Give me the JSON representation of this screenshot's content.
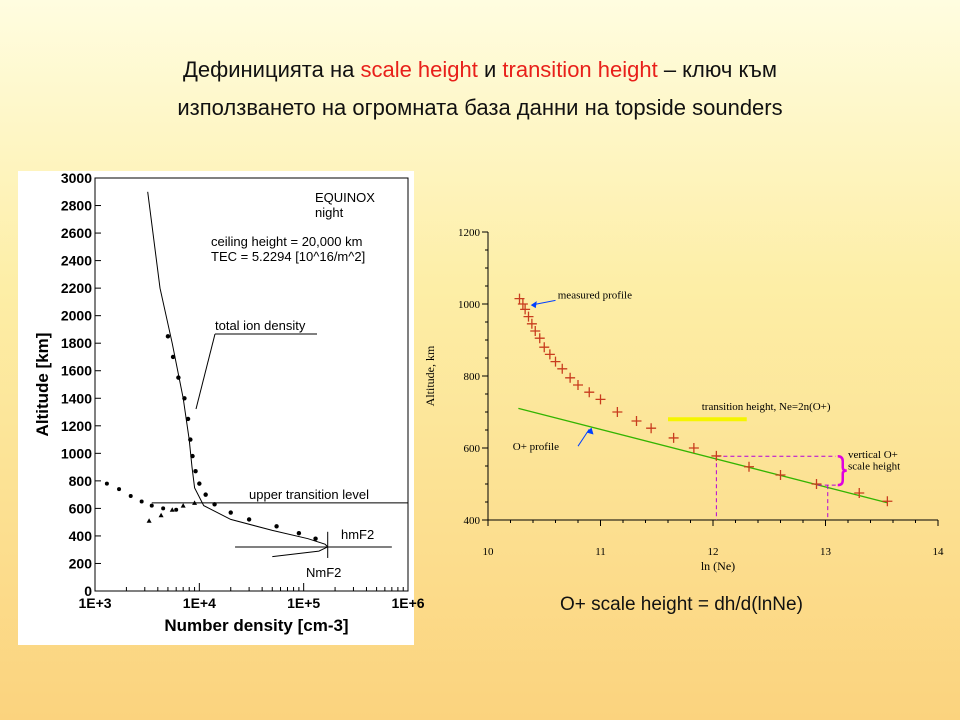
{
  "slide": {
    "title_line1_a": "Дефиницията на ",
    "title_line1_b": "scale height",
    "title_line1_c": " и ",
    "title_line1_d": "transition height",
    "title_line1_e": " – ключ към",
    "title_line2": "използването на огромната база данни на topside sounders",
    "formula": "O+ scale height = dh/d(lnNe)",
    "accent_color": "#e8201a"
  },
  "chart_data": [
    {
      "type": "scatter",
      "xlabel": "Number density [cm-3]",
      "ylabel": "Altitude [km]",
      "x_scale": "log",
      "xlim": [
        1000,
        1000000
      ],
      "ylim": [
        0,
        3000
      ],
      "x_ticks": [
        "1E+3",
        "1E+4",
        "1E+5",
        "1E+6"
      ],
      "y_ticks": [
        "0",
        "200",
        "400",
        "600",
        "800",
        "1000",
        "1200",
        "1400",
        "1600",
        "1800",
        "2000",
        "2200",
        "2400",
        "2600",
        "2800",
        "3000"
      ],
      "legend_lines": [
        "EQUINOX",
        "night",
        "ceiling height = 20,000 km",
        "TEC = 5.2294 [10^16/m^2]"
      ],
      "annotations": [
        "total ion density",
        "upper transition level",
        "hmF2",
        "NmF2"
      ],
      "upper_transition_level": 640,
      "hmF2": 320,
      "NmF2": 170000,
      "total_ion_density": [
        {
          "x": 3200,
          "y": 2900
        },
        {
          "x": 4200,
          "y": 2200
        },
        {
          "x": 5500,
          "y": 1800
        },
        {
          "x": 7000,
          "y": 1400
        },
        {
          "x": 8000,
          "y": 1100
        },
        {
          "x": 8500,
          "y": 900
        },
        {
          "x": 9000,
          "y": 750
        },
        {
          "x": 11000,
          "y": 620
        },
        {
          "x": 20000,
          "y": 520
        },
        {
          "x": 50000,
          "y": 440
        },
        {
          "x": 110000,
          "y": 380
        },
        {
          "x": 160000,
          "y": 340
        },
        {
          "x": 170000,
          "y": 320
        },
        {
          "x": 140000,
          "y": 290
        },
        {
          "x": 50000,
          "y": 250
        }
      ],
      "scatter_ions": [
        {
          "x": 5000,
          "y": 1850
        },
        {
          "x": 5600,
          "y": 1700
        },
        {
          "x": 6300,
          "y": 1550
        },
        {
          "x": 7200,
          "y": 1400
        },
        {
          "x": 7800,
          "y": 1250
        },
        {
          "x": 8200,
          "y": 1100
        },
        {
          "x": 8600,
          "y": 980
        },
        {
          "x": 9200,
          "y": 870
        },
        {
          "x": 10000,
          "y": 780
        },
        {
          "x": 11500,
          "y": 700
        },
        {
          "x": 14000,
          "y": 630
        },
        {
          "x": 20000,
          "y": 570
        },
        {
          "x": 30000,
          "y": 520
        },
        {
          "x": 55000,
          "y": 470
        },
        {
          "x": 90000,
          "y": 420
        },
        {
          "x": 130000,
          "y": 380
        }
      ],
      "scatter_light": [
        {
          "x": 1300,
          "y": 780
        },
        {
          "x": 1700,
          "y": 740
        },
        {
          "x": 2200,
          "y": 690
        },
        {
          "x": 2800,
          "y": 650
        },
        {
          "x": 3500,
          "y": 620
        },
        {
          "x": 4500,
          "y": 600
        },
        {
          "x": 6000,
          "y": 590
        }
      ],
      "scatter_triangles": [
        {
          "x": 3300,
          "y": 510
        },
        {
          "x": 4300,
          "y": 550
        },
        {
          "x": 5500,
          "y": 590
        },
        {
          "x": 7000,
          "y": 620
        },
        {
          "x": 9000,
          "y": 640
        }
      ]
    },
    {
      "type": "scatter",
      "xlabel": "ln (Ne)",
      "ylabel": "Altitude, km",
      "xlim": [
        10,
        14
      ],
      "ylim": [
        400,
        1200
      ],
      "x_ticks": [
        10,
        11,
        12,
        13,
        14
      ],
      "y_ticks": [
        400,
        600,
        800,
        1000,
        1200
      ],
      "annotations": {
        "measured": "measured profile",
        "transition": "transition height,  Ne=2n(O+)",
        "oplus": "O+ profile",
        "scale1": "vertical O+",
        "scale2": "scale height"
      },
      "transition_height": 680,
      "measured_profile": [
        {
          "x": 10.28,
          "y": 1015
        },
        {
          "x": 10.31,
          "y": 1000
        },
        {
          "x": 10.33,
          "y": 985
        },
        {
          "x": 10.36,
          "y": 965
        },
        {
          "x": 10.39,
          "y": 945
        },
        {
          "x": 10.42,
          "y": 925
        },
        {
          "x": 10.46,
          "y": 905
        },
        {
          "x": 10.5,
          "y": 880
        },
        {
          "x": 10.55,
          "y": 860
        },
        {
          "x": 10.6,
          "y": 840
        },
        {
          "x": 10.66,
          "y": 820
        },
        {
          "x": 10.73,
          "y": 795
        },
        {
          "x": 10.8,
          "y": 775
        },
        {
          "x": 10.9,
          "y": 755
        },
        {
          "x": 11.0,
          "y": 735
        },
        {
          "x": 11.15,
          "y": 700
        },
        {
          "x": 11.32,
          "y": 675
        },
        {
          "x": 11.45,
          "y": 655
        },
        {
          "x": 11.65,
          "y": 628
        },
        {
          "x": 11.83,
          "y": 600
        },
        {
          "x": 12.03,
          "y": 578
        },
        {
          "x": 12.32,
          "y": 548
        },
        {
          "x": 12.6,
          "y": 525
        },
        {
          "x": 12.92,
          "y": 500
        },
        {
          "x": 13.3,
          "y": 475
        },
        {
          "x": 13.55,
          "y": 452
        }
      ],
      "oplus_fit": [
        {
          "x": 10.27,
          "y": 710
        },
        {
          "x": 13.55,
          "y": 448
        }
      ],
      "scale_height_box": {
        "x1": 12.03,
        "x2": 13.02,
        "y1": 577,
        "y2": 400
      }
    }
  ]
}
